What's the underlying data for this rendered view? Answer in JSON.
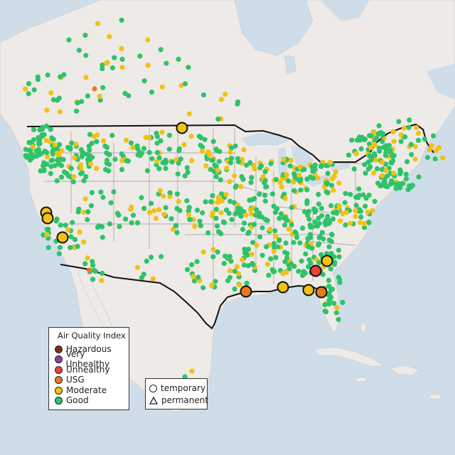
{
  "legend": {
    "title": "Air Quality Index",
    "items": [
      {
        "label": "Hazardous",
        "color": "#7e2f12"
      },
      {
        "label": "Very Unhealthy",
        "color": "#8f3f97"
      },
      {
        "label": "Unhealthy",
        "color": "#e8443a"
      },
      {
        "label": "USG",
        "color": "#e57c1c"
      },
      {
        "label": "Moderate",
        "color": "#f2c112"
      },
      {
        "label": "Good",
        "color": "#2ec36a"
      }
    ]
  },
  "type_legend": {
    "items": [
      {
        "label": "temporary",
        "shape": "circle-icon"
      },
      {
        "label": "permanent",
        "shape": "triangle-icon"
      }
    ]
  },
  "colors": {
    "water": "#cfdde9",
    "land": "#eeeae7",
    "border": "#111111",
    "state_lines": "#9a9a9a",
    "good": "#2ec36a",
    "moderate": "#f2c112",
    "usg": "#e57c1c",
    "unhealthy": "#e8443a"
  },
  "highlighted_monitors": [
    {
      "location": "North Dakota",
      "category": "Moderate"
    },
    {
      "location": "Northern California",
      "category": "Moderate"
    },
    {
      "location": "Northern California",
      "category": "Moderate"
    },
    {
      "location": "Central California",
      "category": "Moderate"
    },
    {
      "location": "Houston, TX",
      "category": "USG"
    },
    {
      "location": "Mobile, AL",
      "category": "Moderate"
    },
    {
      "location": "Atlanta, GA",
      "category": "Unhealthy"
    },
    {
      "location": "Augusta, GA",
      "category": "Moderate"
    },
    {
      "location": "Tallahassee, FL",
      "category": "Moderate"
    },
    {
      "location": "North Florida",
      "category": "USG"
    }
  ]
}
